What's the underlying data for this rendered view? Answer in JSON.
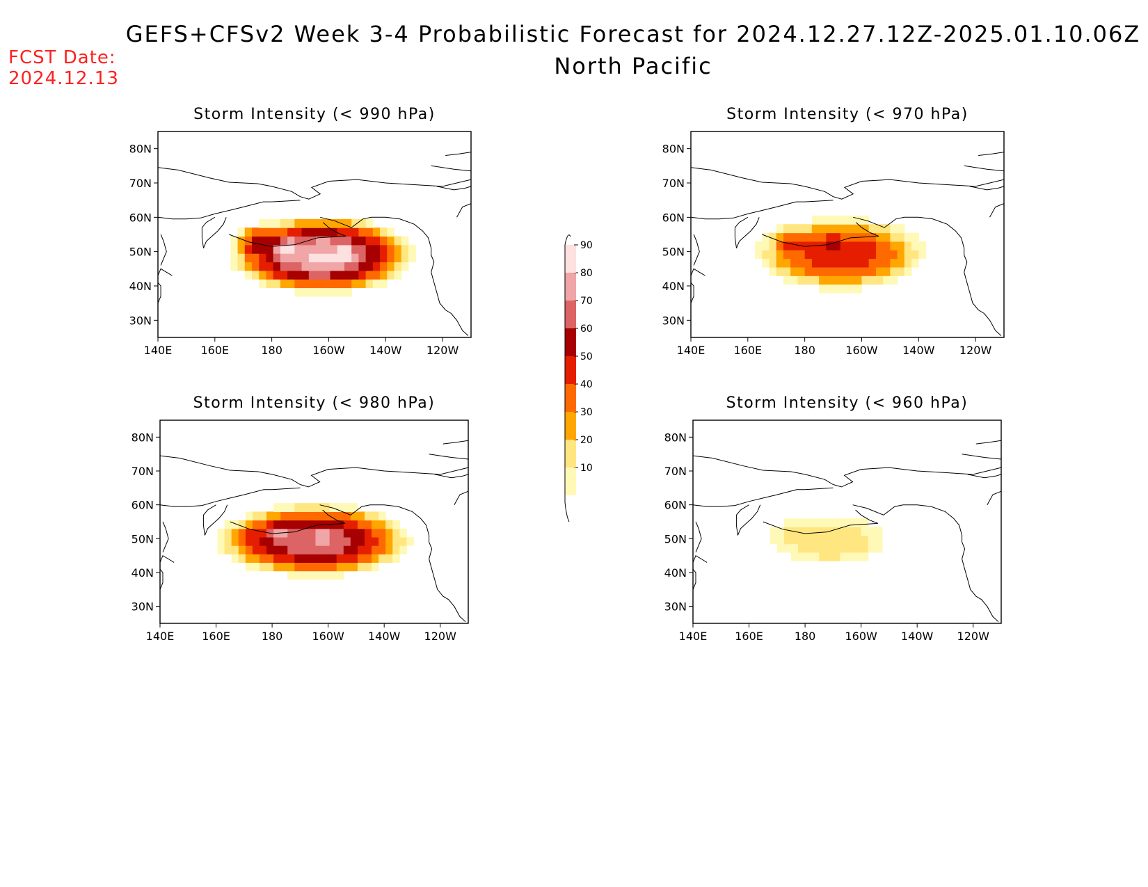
{
  "header": {
    "title": "GEFS+CFSv2 Week 3-4 Probabilistic Forecast for 2024.12.27.12Z-2025.01.10.06Z",
    "subtitle": "North Pacific",
    "fcst_label": "FCST Date:",
    "fcst_date": "2024.12.13"
  },
  "colors": {
    "fcst": "#ff2020",
    "scale": [
      "#fff9b8",
      "#ffe680",
      "#ffa600",
      "#ff6a00",
      "#e61e00",
      "#a60000",
      "#dc6464",
      "#f0a6a6",
      "#fde0e0"
    ]
  },
  "colorbar": {
    "levels": [
      "10",
      "20",
      "30",
      "40",
      "50",
      "60",
      "70",
      "80",
      "90"
    ]
  },
  "chart_data": [
    {
      "type": "heatmap",
      "title": "Storm Intensity (< 990 hPa)",
      "x_ticks": [
        "140E",
        "160E",
        "180",
        "160W",
        "140W",
        "120W"
      ],
      "y_ticks": [
        "30N",
        "40N",
        "50N",
        "60N",
        "70N",
        "80N"
      ],
      "xlim": [
        140,
        250
      ],
      "ylim": [
        25,
        85
      ],
      "lon_range": [
        163,
        232
      ],
      "lat_range": [
        37,
        61
      ],
      "peaks": [
        {
          "lon": 185,
          "lat": 51,
          "value": 92
        },
        {
          "lon": 205,
          "lat": 49,
          "value": 88
        },
        {
          "lon": 175,
          "lat": 53,
          "value": 85
        }
      ],
      "max": 92
    },
    {
      "type": "heatmap",
      "title": "Storm Intensity (< 970 hPa)",
      "x_ticks": [
        "140E",
        "160E",
        "180",
        "160W",
        "140W",
        "120W"
      ],
      "y_ticks": [
        "30N",
        "40N",
        "50N",
        "60N",
        "70N",
        "80N"
      ],
      "xlim": [
        140,
        250
      ],
      "ylim": [
        25,
        85
      ],
      "lon_range": [
        160,
        225
      ],
      "lat_range": [
        38,
        61
      ],
      "peaks": [
        {
          "lon": 175,
          "lat": 52,
          "value": 60
        },
        {
          "lon": 190,
          "lat": 52,
          "value": 55
        },
        {
          "lon": 200,
          "lat": 51,
          "value": 48
        }
      ],
      "max": 60
    },
    {
      "type": "heatmap",
      "title": "Storm Intensity (< 980 hPa)",
      "x_ticks": [
        "140E",
        "160E",
        "180",
        "160W",
        "140W",
        "120W"
      ],
      "y_ticks": [
        "30N",
        "40N",
        "50N",
        "60N",
        "70N",
        "80N"
      ],
      "xlim": [
        140,
        250
      ],
      "ylim": [
        25,
        85
      ],
      "lon_range": [
        158,
        232
      ],
      "lat_range": [
        38,
        61
      ],
      "peaks": [
        {
          "lon": 183,
          "lat": 52,
          "value": 80
        },
        {
          "lon": 198,
          "lat": 51,
          "value": 75
        },
        {
          "lon": 172,
          "lat": 50,
          "value": 65
        }
      ],
      "max": 80
    },
    {
      "type": "heatmap",
      "title": "Storm Intensity (< 960 hPa)",
      "x_ticks": [
        "140E",
        "160E",
        "180",
        "160W",
        "140W",
        "120W"
      ],
      "y_ticks": [
        "30N",
        "40N",
        "50N",
        "60N",
        "70N",
        "80N"
      ],
      "xlim": [
        140,
        250
      ],
      "ylim": [
        25,
        85
      ],
      "lon_range": [
        165,
        213
      ],
      "lat_range": [
        41,
        58
      ],
      "peaks": [
        {
          "lon": 175,
          "lat": 52,
          "value": 30
        },
        {
          "lon": 195,
          "lat": 52,
          "value": 22
        }
      ],
      "max": 30
    }
  ]
}
